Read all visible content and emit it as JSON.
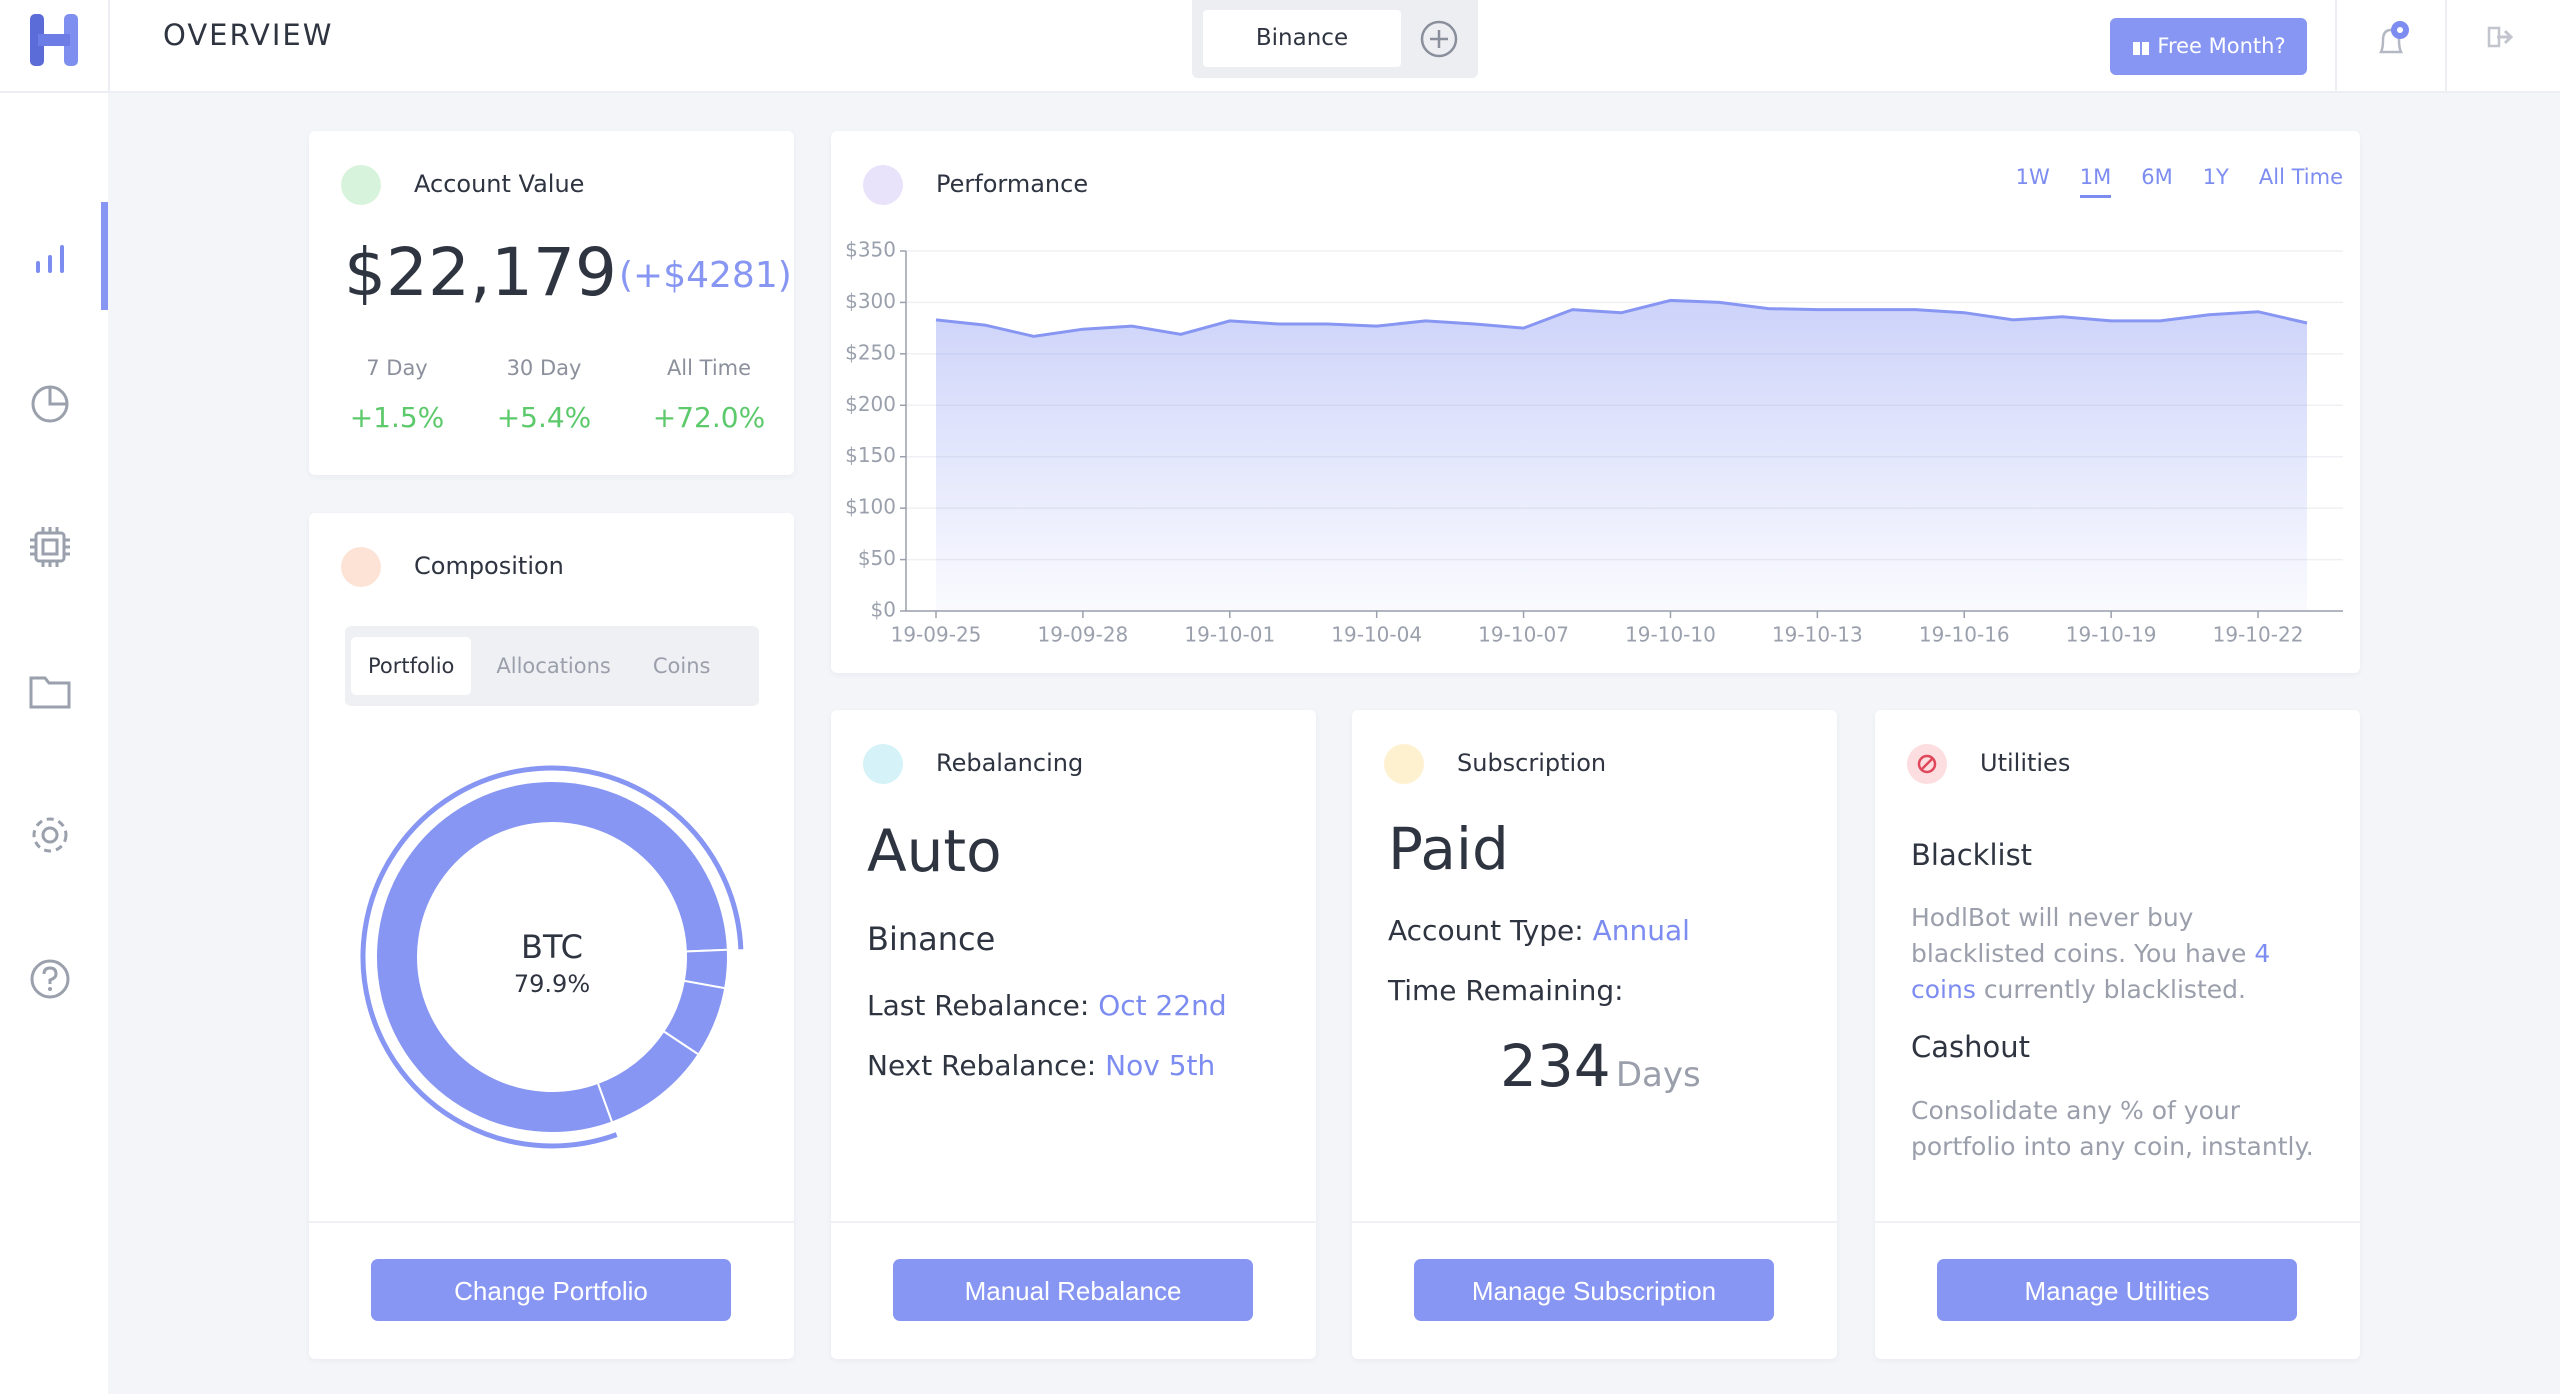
{
  "header": {
    "title": "OVERVIEW",
    "exchange_tab": "Binance",
    "promo_button": "Free Month?"
  },
  "account_value": {
    "title": "Account Value",
    "value": "$22,179",
    "change": "(+$4281)",
    "stats": [
      {
        "label": "7 Day",
        "value": "+1.5%"
      },
      {
        "label": "30 Day",
        "value": "+5.4%"
      },
      {
        "label": "All Time",
        "value": "+72.0%"
      }
    ]
  },
  "composition": {
    "title": "Composition",
    "tabs": [
      "Portfolio",
      "Allocations",
      "Coins"
    ],
    "active_tab_index": 0,
    "chart_data": {
      "type": "donut",
      "categories": [
        "BTC",
        null,
        null,
        null
      ],
      "values": [
        79.9,
        3.5,
        6.5,
        10.1
      ],
      "value_labels": [
        "79.9%",
        null,
        null,
        null
      ],
      "color": "#8796f2"
    },
    "button": "Change Portfolio"
  },
  "performance": {
    "title": "Performance",
    "ranges": [
      "1W",
      "1M",
      "6M",
      "1Y",
      "All Time"
    ],
    "active_range_index": 1,
    "chart_data": {
      "type": "area",
      "color": "#8796f2",
      "grid": true,
      "categories": [
        "19-09-25",
        null,
        null,
        "19-09-28",
        null,
        null,
        "19-10-01",
        null,
        null,
        "19-10-04",
        null,
        null,
        "19-10-07",
        null,
        null,
        "19-10-10",
        null,
        null,
        "19-10-13",
        null,
        null,
        "19-10-16",
        null,
        null,
        "19-10-19",
        null,
        null,
        "19-10-22",
        null
      ],
      "values": [
        283,
        278,
        267,
        274,
        277,
        269,
        282,
        279,
        279,
        277,
        282,
        279,
        275,
        293,
        290,
        302,
        300,
        294,
        293,
        293,
        293,
        290,
        283,
        286,
        282,
        282,
        288,
        291,
        280
      ],
      "ylim": [
        0,
        350
      ],
      "yticks": [
        {
          "value": 0,
          "label": "$0"
        },
        {
          "value": 50,
          "label": "$50"
        },
        {
          "value": 100,
          "label": "$100"
        },
        {
          "value": 150,
          "label": "$150"
        },
        {
          "value": 200,
          "label": "$200"
        },
        {
          "value": 250,
          "label": "$250"
        },
        {
          "value": 300,
          "label": "$300"
        },
        {
          "value": 350,
          "label": "$350"
        }
      ]
    }
  },
  "rebalancing": {
    "title": "Rebalancing",
    "mode": "Auto",
    "exchange": "Binance",
    "last_label": "Last Rebalance:",
    "last_value": "Oct 22nd",
    "next_label": "Next Rebalance:",
    "next_value": "Nov 5th",
    "button": "Manual Rebalance"
  },
  "subscription": {
    "title": "Subscription",
    "status": "Paid",
    "account_type_label": "Account Type:",
    "account_type": "Annual",
    "time_remaining_label": "Time Remaining:",
    "days": 234,
    "days_unit": "Days",
    "button": "Manage Subscription"
  },
  "utilities": {
    "title": "Utilities",
    "blacklist_title": "Blacklist",
    "blacklist_text_before": "HodlBot will never buy blacklisted coins. You have",
    "blacklist_link": "4 coins",
    "blacklist_text_after": "currently blacklisted.",
    "cashout_title": "Cashout",
    "cashout_text": "Consolidate any % of your portfolio into any coin, instantly.",
    "button": "Manage Utilities"
  }
}
